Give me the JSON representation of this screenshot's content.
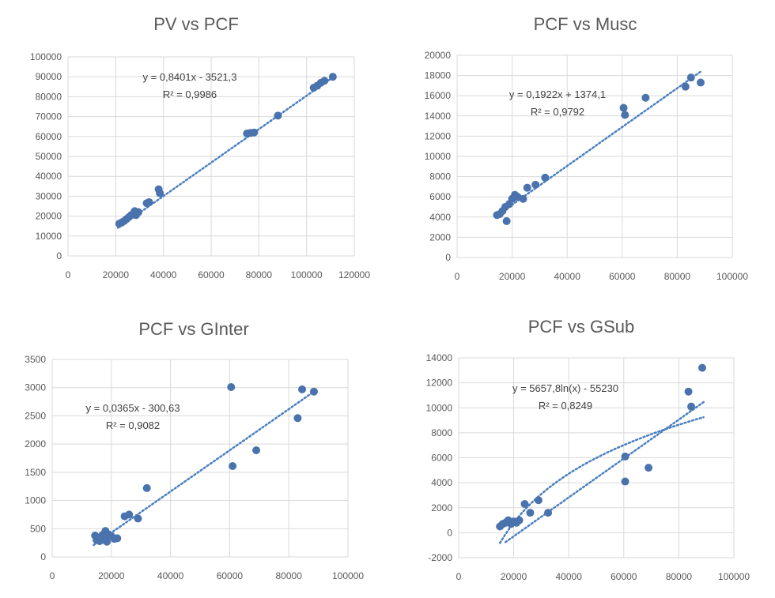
{
  "colors": {
    "point": "#4a73ad",
    "trend": "#4a7fc1",
    "grid": "#d9d9d9",
    "text": "#595959"
  },
  "chart_data": [
    {
      "type": "scatter",
      "title": "PV vs PCF",
      "xlim": [
        0,
        120000
      ],
      "ylim": [
        0,
        100000
      ],
      "xticks": [
        0,
        20000,
        40000,
        60000,
        80000,
        100000,
        120000
      ],
      "yticks": [
        0,
        10000,
        20000,
        30000,
        40000,
        50000,
        60000,
        70000,
        80000,
        90000,
        100000
      ],
      "trendline": {
        "kind": "linear",
        "slope": 0.8401,
        "intercept": -3521.3,
        "x_range": [
          21000,
          111000
        ]
      },
      "equation": "y = 0,8401x - 3521,3",
      "r2_label": "R² = 0,9986",
      "points": [
        [
          21500,
          16200
        ],
        [
          22500,
          16800
        ],
        [
          23500,
          17500
        ],
        [
          24500,
          18500
        ],
        [
          25500,
          19500
        ],
        [
          26500,
          20500
        ],
        [
          27500,
          21500
        ],
        [
          28000,
          22500
        ],
        [
          28500,
          20500
        ],
        [
          29500,
          22000
        ],
        [
          33000,
          26500
        ],
        [
          34000,
          27000
        ],
        [
          38000,
          33500
        ],
        [
          38500,
          31500
        ],
        [
          75000,
          61500
        ],
        [
          76500,
          61800
        ],
        [
          78000,
          62000
        ],
        [
          88000,
          70500
        ],
        [
          103000,
          84500
        ],
        [
          104500,
          85500
        ],
        [
          106000,
          87000
        ],
        [
          107500,
          88000
        ],
        [
          111000,
          90000
        ]
      ]
    },
    {
      "type": "scatter",
      "title": "PCF vs Musc",
      "xlim": [
        0,
        100000
      ],
      "ylim": [
        0,
        20000
      ],
      "xticks": [
        0,
        20000,
        40000,
        60000,
        80000,
        100000
      ],
      "yticks": [
        0,
        2000,
        4000,
        6000,
        8000,
        10000,
        12000,
        14000,
        16000,
        18000,
        20000
      ],
      "trendline": {
        "kind": "linear",
        "slope": 0.1922,
        "intercept": 1374.1,
        "x_range": [
          14000,
          89000
        ]
      },
      "equation": "y = 0,1922x + 1374,1",
      "r2_label": "R² = 0,9792",
      "points": [
        [
          14500,
          4200
        ],
        [
          15500,
          4300
        ],
        [
          16500,
          4600
        ],
        [
          17500,
          5000
        ],
        [
          18000,
          3600
        ],
        [
          19000,
          5300
        ],
        [
          20000,
          5800
        ],
        [
          21000,
          6200
        ],
        [
          22000,
          6000
        ],
        [
          24000,
          5800
        ],
        [
          25500,
          6900
        ],
        [
          28500,
          7200
        ],
        [
          32000,
          7900
        ],
        [
          60500,
          14800
        ],
        [
          61000,
          14100
        ],
        [
          68500,
          15800
        ],
        [
          83000,
          16900
        ],
        [
          85000,
          17800
        ],
        [
          88500,
          17300
        ]
      ]
    },
    {
      "type": "scatter",
      "title": "PCF vs GInter",
      "xlim": [
        0,
        100000
      ],
      "ylim": [
        0,
        3500
      ],
      "xticks": [
        0,
        20000,
        40000,
        60000,
        80000,
        100000
      ],
      "yticks": [
        0,
        500,
        1000,
        1500,
        2000,
        2500,
        3000,
        3500
      ],
      "trendline": {
        "kind": "linear",
        "slope": 0.0365,
        "intercept": -300.63,
        "x_range": [
          14000,
          89000
        ]
      },
      "equation": "y = 0,0365x - 300,63",
      "r2_label": "R² = 0,9082",
      "points": [
        [
          14500,
          380
        ],
        [
          15000,
          300
        ],
        [
          15500,
          340
        ],
        [
          16000,
          280
        ],
        [
          17000,
          390
        ],
        [
          17500,
          300
        ],
        [
          18000,
          460
        ],
        [
          18500,
          270
        ],
        [
          19000,
          400
        ],
        [
          20000,
          370
        ],
        [
          21000,
          320
        ],
        [
          22000,
          330
        ],
        [
          24500,
          720
        ],
        [
          26000,
          750
        ],
        [
          29000,
          680
        ],
        [
          32000,
          1220
        ],
        [
          60500,
          3010
        ],
        [
          61000,
          1610
        ],
        [
          69000,
          1890
        ],
        [
          83000,
          2460
        ],
        [
          84500,
          2970
        ],
        [
          88500,
          2930
        ]
      ]
    },
    {
      "type": "scatter",
      "title": "PCF vs GSub",
      "xlim": [
        0,
        100000
      ],
      "ylim": [
        -2000,
        14000
      ],
      "xticks": [
        0,
        20000,
        40000,
        60000,
        80000,
        100000
      ],
      "yticks": [
        -2000,
        0,
        2000,
        4000,
        6000,
        8000,
        10000,
        12000,
        14000
      ],
      "trendline": {
        "kind": "log",
        "a": 5657.8,
        "b": -55230,
        "x_range": [
          15000,
          89000
        ]
      },
      "trendline2": {
        "kind": "linear",
        "slope": 0.1557,
        "intercept": -3400,
        "x_range": [
          17000,
          89000
        ]
      },
      "equation": "y = 5657,8ln(x) - 55230",
      "r2_label": "R² = 0,8249",
      "points": [
        [
          15000,
          500
        ],
        [
          16000,
          700
        ],
        [
          17000,
          800
        ],
        [
          18000,
          1000
        ],
        [
          19000,
          700
        ],
        [
          20000,
          900
        ],
        [
          21000,
          800
        ],
        [
          22000,
          1000
        ],
        [
          24000,
          2300
        ],
        [
          26000,
          1600
        ],
        [
          29000,
          2600
        ],
        [
          32500,
          1600
        ],
        [
          60500,
          6100
        ],
        [
          60500,
          4100
        ],
        [
          69000,
          5200
        ],
        [
          83500,
          11300
        ],
        [
          84500,
          10100
        ],
        [
          88500,
          13200
        ]
      ]
    }
  ]
}
